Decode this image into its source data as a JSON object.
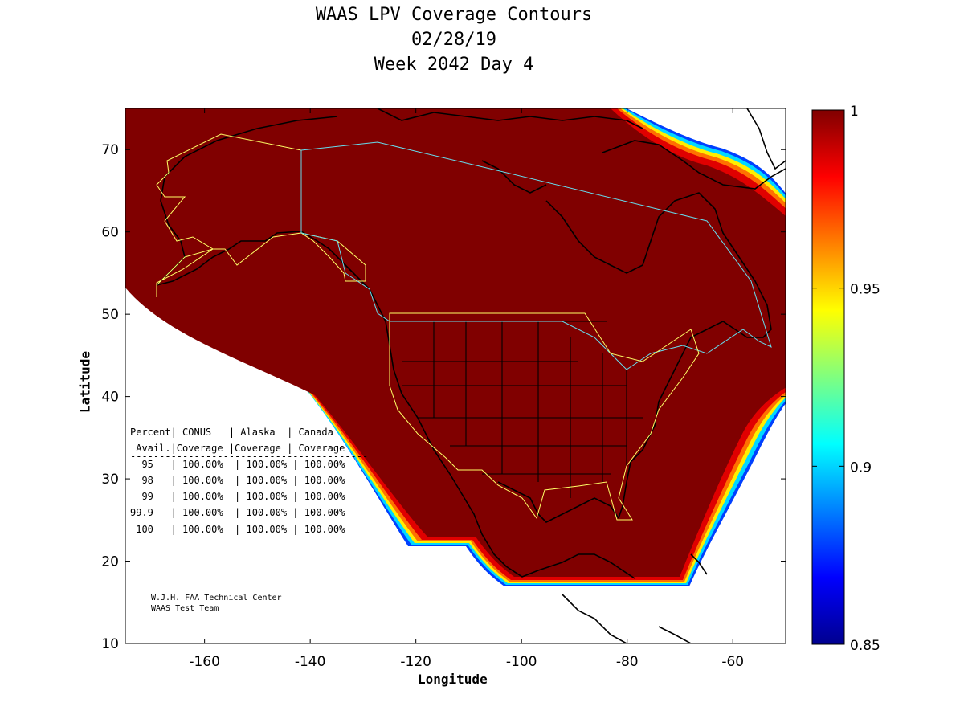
{
  "title": {
    "line1": "WAAS LPV Coverage Contours",
    "line2": "02/28/19",
    "line3": "Week 2042 Day 4"
  },
  "axes": {
    "xlabel": "Longitude",
    "ylabel": "Latitude",
    "xlim": [
      -175,
      -50
    ],
    "ylim": [
      10,
      75
    ],
    "xticks": [
      -160,
      -140,
      -120,
      -100,
      -80,
      -60
    ],
    "yticks": [
      10,
      20,
      30,
      40,
      50,
      60,
      70
    ]
  },
  "colorbar": {
    "min": 0.85,
    "max": 1,
    "ticks": [
      "1",
      "0.95",
      "0.9",
      "0.85"
    ]
  },
  "colors": {
    "coverage": "#800000",
    "region_conus": "#ffff66",
    "region_alaska": "#ffff66",
    "region_canada": "#66ddee"
  },
  "table": {
    "header1": "Percent| CONUS   | Alaska  | Canada",
    "header2": " Avail.|Coverage |Coverage | Coverage",
    "rule": "-----------------------------------------",
    "rows": [
      "  95   | 100.00%  | 100.00% | 100.00%",
      "  98   | 100.00%  | 100.00% | 100.00%",
      "  99   | 100.00%  | 100.00% | 100.00%",
      "99.9   | 100.00%  | 100.00% | 100.00%",
      " 100   | 100.00%  | 100.00% | 100.00%"
    ]
  },
  "credit": {
    "line1": "W.J.H. FAA Technical Center",
    "line2": "WAAS Test Team"
  }
}
